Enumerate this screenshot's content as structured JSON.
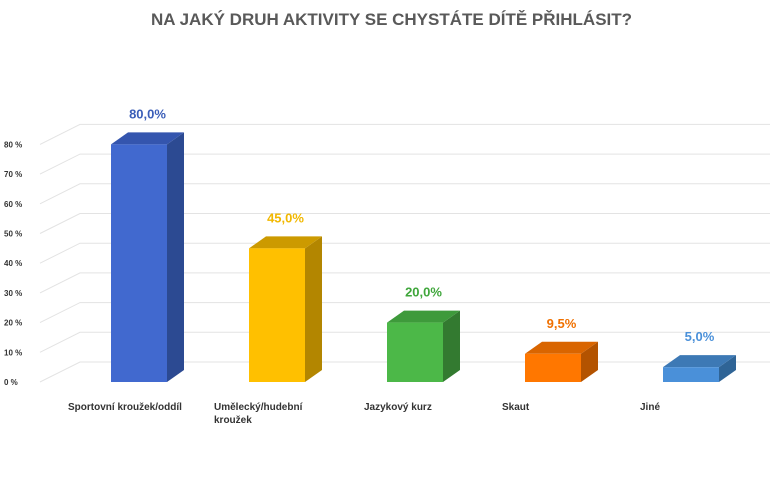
{
  "chart_data": {
    "type": "bar",
    "title": "NA JAKÝ DRUH AKTIVITY SE CHYSTÁTE DÍTĚ PŘIHLÁSIT?",
    "xlabel": "",
    "ylabel": "",
    "categories": [
      [
        "Sportovní kroužek/oddíl"
      ],
      [
        "Umělecký/hudební",
        "kroužek"
      ],
      [
        "Jazykový kurz"
      ],
      [
        "Skaut"
      ],
      [
        "Jiné"
      ]
    ],
    "values": [
      80.0,
      45.0,
      20.0,
      9.5,
      5.0
    ],
    "data_labels": [
      "80,0%",
      "45,0%",
      "20,0%",
      "9,5%",
      "5,0%"
    ],
    "ylim": [
      0,
      80
    ],
    "yticks": [
      0,
      10,
      20,
      30,
      40,
      50,
      60,
      70,
      80
    ],
    "ytick_labels": [
      "0 %",
      "10 %",
      "20 %",
      "30 %",
      "40 %",
      "50 %",
      "60 %",
      "70 %",
      "80 %"
    ],
    "grid": true,
    "legend": "none",
    "colors": [
      {
        "front": "#4169CF",
        "side": "#2C4A92",
        "top": "#3455AE",
        "label": "#3B5EB8"
      },
      {
        "front": "#FFC000",
        "side": "#B38600",
        "top": "#CC9A00",
        "label": "#F2B800"
      },
      {
        "front": "#4CB848",
        "side": "#337A30",
        "top": "#3E9A3B",
        "label": "#3FA63B"
      },
      {
        "front": "#FF7700",
        "side": "#B35300",
        "top": "#D96500",
        "label": "#F07000"
      },
      {
        "front": "#4A90D9",
        "side": "#2F6496",
        "top": "#3D79B5",
        "label": "#4A90D9"
      }
    ]
  }
}
